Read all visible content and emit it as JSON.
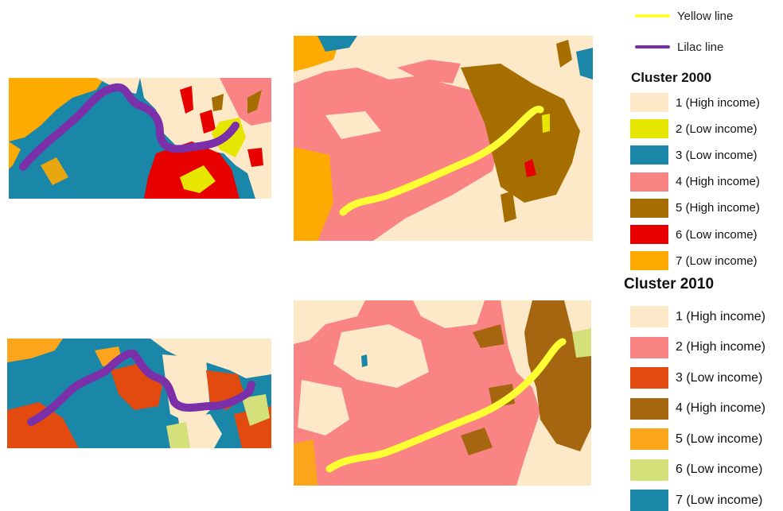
{
  "colors": {
    "yellow_line": "#ffff33",
    "lilac_line": "#7b2fa8"
  },
  "legend": {
    "lines": [
      {
        "label": "Yellow line",
        "color": "#ffff33"
      },
      {
        "label": "Lilac line",
        "color": "#7b2fa8"
      }
    ],
    "cluster_2000": {
      "title": "Cluster 2000",
      "items": [
        {
          "label": "1 (High income)",
          "color": "#fde8c8"
        },
        {
          "label": "2 (Low income)",
          "color": "#e6e600"
        },
        {
          "label": "3 (Low income)",
          "color": "#1b87a8"
        },
        {
          "label": "4 (High income)",
          "color": "#fa8484"
        },
        {
          "label": "5 (High income)",
          "color": "#a66e00"
        },
        {
          "label": "6 (Low income)",
          "color": "#e60000"
        },
        {
          "label": "7 (Low income)",
          "color": "#ffaa00"
        }
      ]
    },
    "cluster_2010": {
      "title": "Cluster 2010",
      "items": [
        {
          "label": "1 (High income)",
          "color": "#fde8c8"
        },
        {
          "label": "2 (High income)",
          "color": "#fa8484"
        },
        {
          "label": "3 (Low income)",
          "color": "#e34a0f"
        },
        {
          "label": "4 (High income)",
          "color": "#a5660f"
        },
        {
          "label": "5 (Low income)",
          "color": "#fca41c"
        },
        {
          "label": "6 (Low income)",
          "color": "#d4e07a"
        },
        {
          "label": "7 (Low income)",
          "color": "#1b87a8"
        }
      ]
    }
  },
  "maps": [
    {
      "id": "lilac-2000",
      "line": "Lilac line",
      "cluster": "Cluster 2000"
    },
    {
      "id": "yellow-2000",
      "line": "Yellow line",
      "cluster": "Cluster 2000"
    },
    {
      "id": "lilac-2010",
      "line": "Lilac line",
      "cluster": "Cluster 2010"
    },
    {
      "id": "yellow-2010",
      "line": "Yellow line",
      "cluster": "Cluster 2010"
    }
  ]
}
